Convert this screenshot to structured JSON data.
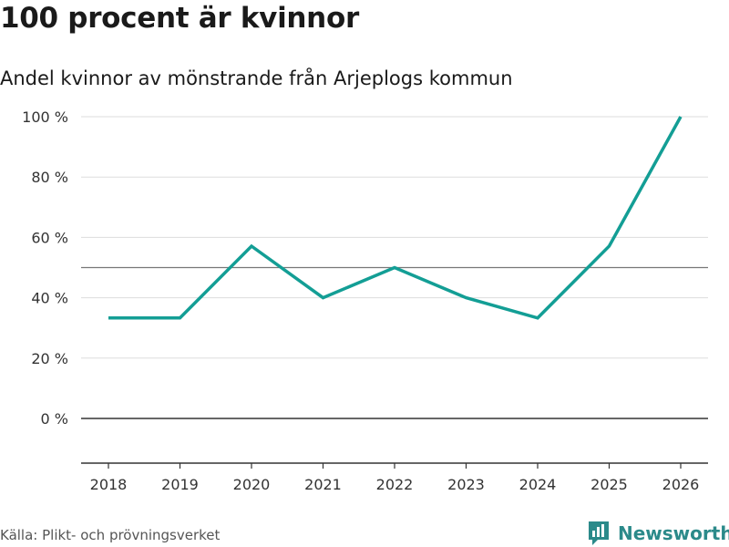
{
  "title": "100 procent är kvinnor",
  "subtitle": "Andel kvinnor av mönstrande från Arjeplogs kommun",
  "source": "Källa: Plikt- och prövningsverket",
  "brand": {
    "name": "Newsworthy",
    "icon": "bar-chart-flag-icon",
    "color": "#2b8a8a"
  },
  "chart_data": {
    "type": "line",
    "title": "100 procent är kvinnor",
    "subtitle": "Andel kvinnor av mönstrande från Arjeplogs kommun",
    "xlabel": "",
    "ylabel": "",
    "x": [
      "2018",
      "2019",
      "2020",
      "2021",
      "2022",
      "2023",
      "2024",
      "2025",
      "2026"
    ],
    "series": [
      {
        "name": "Andel kvinnor",
        "color": "#139e95",
        "values": [
          33.3,
          33.3,
          57.1,
          40,
          50,
          40,
          33.3,
          57.1,
          100
        ]
      }
    ],
    "ylim": [
      -15,
      100
    ],
    "yticks": [
      0,
      20,
      40,
      60,
      80,
      100
    ],
    "ytick_labels": [
      "0 %",
      "20 %",
      "40 %",
      "60 %",
      "80 %",
      "100 %"
    ],
    "reference_lines": [
      {
        "value": 50
      },
      {
        "value": 0
      }
    ],
    "grid": true,
    "legend": "none"
  }
}
